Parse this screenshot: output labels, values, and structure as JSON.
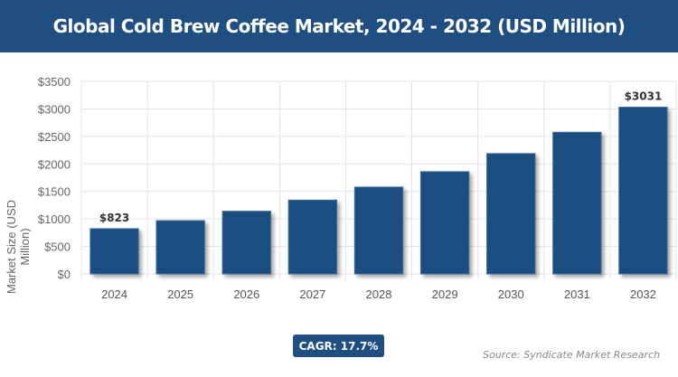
{
  "header": {
    "title": "Global Cold Brew Coffee Market, 2024 - 2032 (USD Million)"
  },
  "chart_data": {
    "type": "bar",
    "title": "Global Cold Brew Coffee Market, 2024 - 2032 (USD Million)",
    "categories": [
      "2024",
      "2025",
      "2026",
      "2027",
      "2028",
      "2029",
      "2030",
      "2031",
      "2032"
    ],
    "values": [
      823,
      969,
      1140,
      1342,
      1579,
      1859,
      2188,
      2575,
      3031
    ],
    "data_labels": {
      "0": "$823",
      "8": "$3031"
    },
    "xlabel": "",
    "ylabel": "Market Size (USD Million)",
    "ylim": [
      0,
      3500
    ],
    "yticks": [
      "$0",
      "$500",
      "$1000",
      "$1500",
      "$2000",
      "$2500",
      "$3000",
      "$3500"
    ],
    "grid": true,
    "bar_color": "#1f4e80"
  },
  "footer": {
    "cagr": "CAGR: 17.7%",
    "source": "Source: Syndicate Market Research"
  }
}
